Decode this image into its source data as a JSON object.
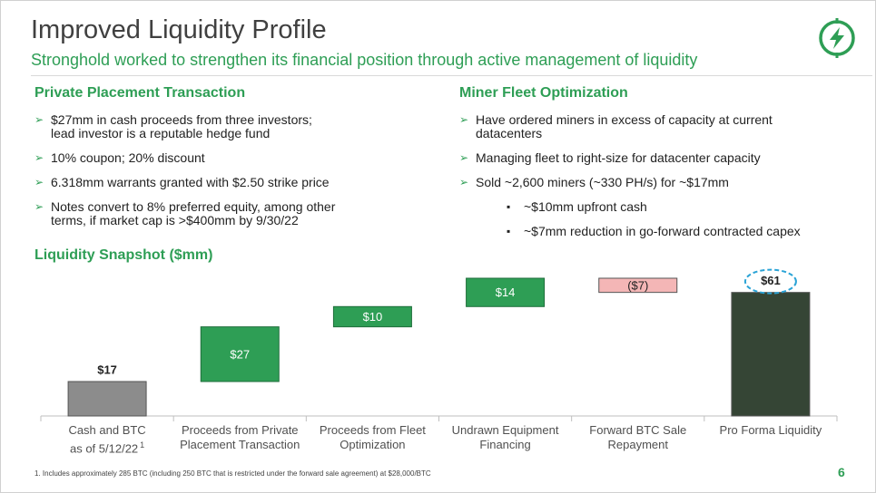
{
  "header": {
    "title": "Improved Liquidity Profile",
    "subtitle": "Stronghold worked to strengthen its financial position through active management of liquidity"
  },
  "private_placement": {
    "heading": "Private Placement Transaction",
    "bullets": [
      {
        "lines": [
          "$27mm in cash proceeds from three investors;",
          "lead investor is a reputable hedge fund"
        ]
      },
      {
        "lines": [
          "10% coupon; 20% discount"
        ]
      },
      {
        "lines": [
          "6.318mm warrants granted with $2.50 strike price"
        ]
      },
      {
        "lines": [
          "Notes convert to 8% preferred equity, among other",
          "terms, if market cap is >$400mm by 9/30/22"
        ]
      }
    ]
  },
  "miner_fleet": {
    "heading": "Miner Fleet Optimization",
    "bullets": [
      {
        "lines": [
          "Have ordered miners in excess of capacity at current",
          "datacenters"
        ]
      },
      {
        "lines": [
          "Managing fleet to right-size for datacenter capacity"
        ]
      },
      {
        "lines": [
          "Sold ~2,600 miners (~330 PH/s) for ~$17mm"
        ],
        "sub": [
          "~$10mm upfront cash",
          "~$7mm reduction in go-forward contracted capex"
        ]
      }
    ]
  },
  "chart_data": {
    "type": "waterfall",
    "title": "Liquidity Snapshot ($mm)",
    "categories": [
      "Cash and BTC as of 5/12/22",
      "Proceeds from Private Placement Transaction",
      "Proceeds from Fleet Optimization",
      "Undrawn Equipment Financing",
      "Forward BTC Sale Repayment",
      "Pro Forma Liquidity"
    ],
    "category_note": "1",
    "values": [
      17,
      27,
      10,
      14,
      -7,
      61
    ],
    "value_labels": [
      "$17",
      "$27",
      "$10",
      "$14",
      "($7)",
      "$61"
    ],
    "measures": [
      "absolute",
      "relative",
      "relative",
      "relative",
      "relative",
      "total"
    ],
    "colors": {
      "absolute": "#8c8c8c",
      "increase": "#2e9e55",
      "decrease": "#f4b6b6",
      "total": "#354535"
    }
  },
  "footnote": "1.  Includes approximately 285 BTC (including 250 BTC that is restricted under the forward sale agreement) at $28,000/BTC",
  "page_number": "6"
}
